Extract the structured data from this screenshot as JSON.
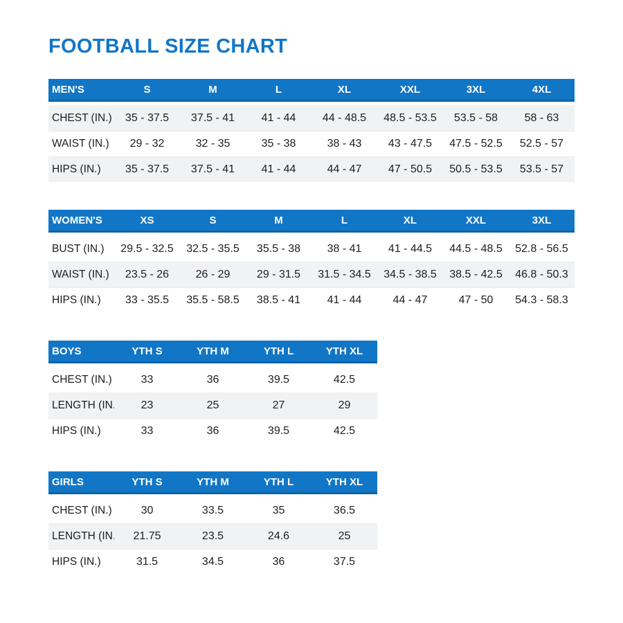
{
  "page": {
    "title": "FOOTBALL SIZE CHART"
  },
  "colors": {
    "accent_blue": "#1276c6",
    "header_border_blue": "#0d63a6",
    "row_shade_gray": "#f1f2f3",
    "header_text": "#ffffff",
    "body_text": "#1d1d1f"
  },
  "chart_data": [
    {
      "type": "table",
      "title": "MEN'S",
      "columns": [
        "MEN'S",
        "S",
        "M",
        "L",
        "XL",
        "XXL",
        "3XL",
        "4XL"
      ],
      "rows": [
        {
          "label": "CHEST (IN.)",
          "values": [
            "35 - 37.5",
            "37.5 - 41",
            "41 - 44",
            "44 - 48.5",
            "48.5 - 53.5",
            "53.5 - 58",
            "58 - 63"
          ]
        },
        {
          "label": "WAIST (IN.)",
          "values": [
            "29 - 32",
            "32 - 35",
            "35 - 38",
            "38 - 43",
            "43 - 47.5",
            "47.5 - 52.5",
            "52.5 - 57"
          ]
        },
        {
          "label": "HIPS (IN.)",
          "values": [
            "35 - 37.5",
            "37.5 - 41",
            "41 - 44",
            "44 - 47",
            "47 - 50.5",
            "50.5 - 53.5",
            "53.5 - 57"
          ]
        }
      ]
    },
    {
      "type": "table",
      "title": "WOMEN'S",
      "columns": [
        "WOMEN'S",
        "XS",
        "S",
        "M",
        "L",
        "XL",
        "XXL",
        "3XL"
      ],
      "rows": [
        {
          "label": "BUST (IN.)",
          "values": [
            "29.5 - 32.5",
            "32.5 - 35.5",
            "35.5 - 38",
            "38 - 41",
            "41 - 44.5",
            "44.5 - 48.5",
            "52.8 - 56.5"
          ]
        },
        {
          "label": "WAIST (IN.)",
          "values": [
            "23.5 - 26",
            "26 - 29",
            "29 - 31.5",
            "31.5 - 34.5",
            "34.5 - 38.5",
            "38.5 - 42.5",
            "46.8 - 50.3"
          ]
        },
        {
          "label": "HIPS (IN.)",
          "values": [
            "33 - 35.5",
            "35.5 - 58.5",
            "38.5 - 41",
            "41 - 44",
            "44 - 47",
            "47 - 50",
            "54.3 - 58.3"
          ]
        }
      ]
    },
    {
      "type": "table",
      "title": "BOYS",
      "columns": [
        "BOYS",
        "YTH S",
        "YTH M",
        "YTH L",
        "YTH XL"
      ],
      "rows": [
        {
          "label": "CHEST (IN.)",
          "values": [
            "33",
            "36",
            "39.5",
            "42.5"
          ]
        },
        {
          "label": "LENGTH (IN.)",
          "values": [
            "23",
            "25",
            "27",
            "29"
          ]
        },
        {
          "label": "HIPS (IN.)",
          "values": [
            "33",
            "36",
            "39.5",
            "42.5"
          ]
        }
      ]
    },
    {
      "type": "table",
      "title": "GIRLS",
      "columns": [
        "GIRLS",
        "YTH S",
        "YTH M",
        "YTH L",
        "YTH XL"
      ],
      "rows": [
        {
          "label": "CHEST (IN.)",
          "values": [
            "30",
            "33.5",
            "35",
            "36.5"
          ]
        },
        {
          "label": "LENGTH (IN.)",
          "values": [
            "21.75",
            "23.5",
            "24.6",
            "25"
          ]
        },
        {
          "label": "HIPS (IN.)",
          "values": [
            "31.5",
            "34.5",
            "36",
            "37.5"
          ]
        }
      ]
    }
  ]
}
